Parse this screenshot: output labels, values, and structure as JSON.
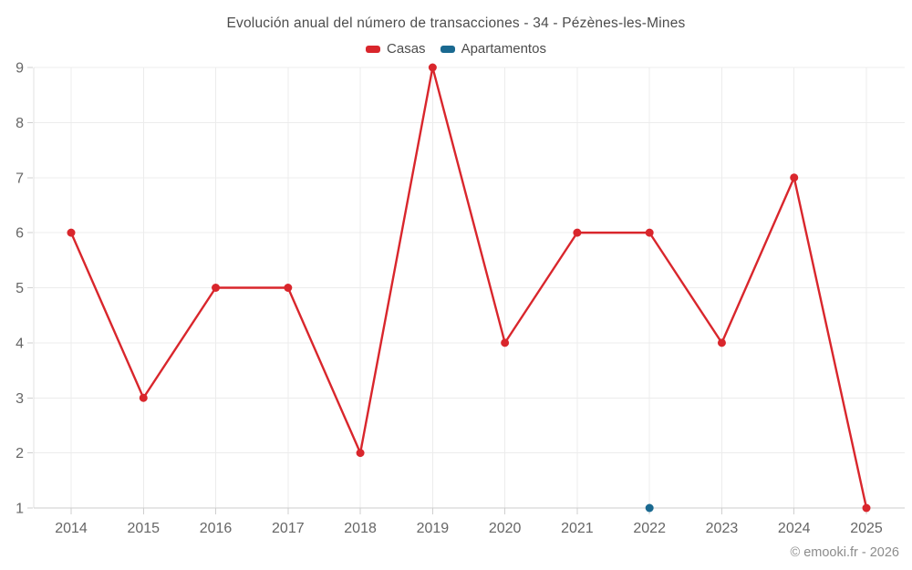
{
  "title": "Evolución anual del número de transacciones - 34 - Pézènes-les-Mines",
  "copyright": "© emooki.fr - 2026",
  "colors": {
    "casas": "#d9262c",
    "apartamentos": "#1a6990",
    "grid": "#ececec",
    "axis": "#cccccc",
    "axis_left": "#e2e2e2",
    "tick": "#cfcfcf",
    "tick_label": "#666666",
    "title_text": "#4c4c4c"
  },
  "legend": [
    {
      "label": "Casas",
      "color": "#d9262c"
    },
    {
      "label": "Apartamentos",
      "color": "#1a6990"
    }
  ],
  "chart_data": {
    "type": "line",
    "title": "Evolución anual del número de transacciones - 34 - Pézènes-les-Mines",
    "xlabel": "",
    "ylabel": "",
    "x": [
      2014,
      2015,
      2016,
      2017,
      2018,
      2019,
      2020,
      2021,
      2022,
      2023,
      2024,
      2025
    ],
    "yticks": [
      1,
      2,
      3,
      4,
      5,
      6,
      7,
      8,
      9
    ],
    "ylim": [
      1,
      9
    ],
    "grid": true,
    "legend_position": "top",
    "series": [
      {
        "name": "Casas",
        "color": "#d9262c",
        "points": [
          [
            2014,
            6
          ],
          [
            2015,
            3
          ],
          [
            2016,
            5
          ],
          [
            2017,
            5
          ],
          [
            2018,
            2
          ],
          [
            2019,
            9
          ],
          [
            2020,
            4
          ],
          [
            2021,
            6
          ],
          [
            2022,
            6
          ],
          [
            2023,
            4
          ],
          [
            2024,
            7
          ],
          [
            2025,
            1
          ]
        ]
      },
      {
        "name": "Apartamentos",
        "color": "#1a6990",
        "points": [
          [
            2022,
            1
          ]
        ]
      }
    ]
  }
}
